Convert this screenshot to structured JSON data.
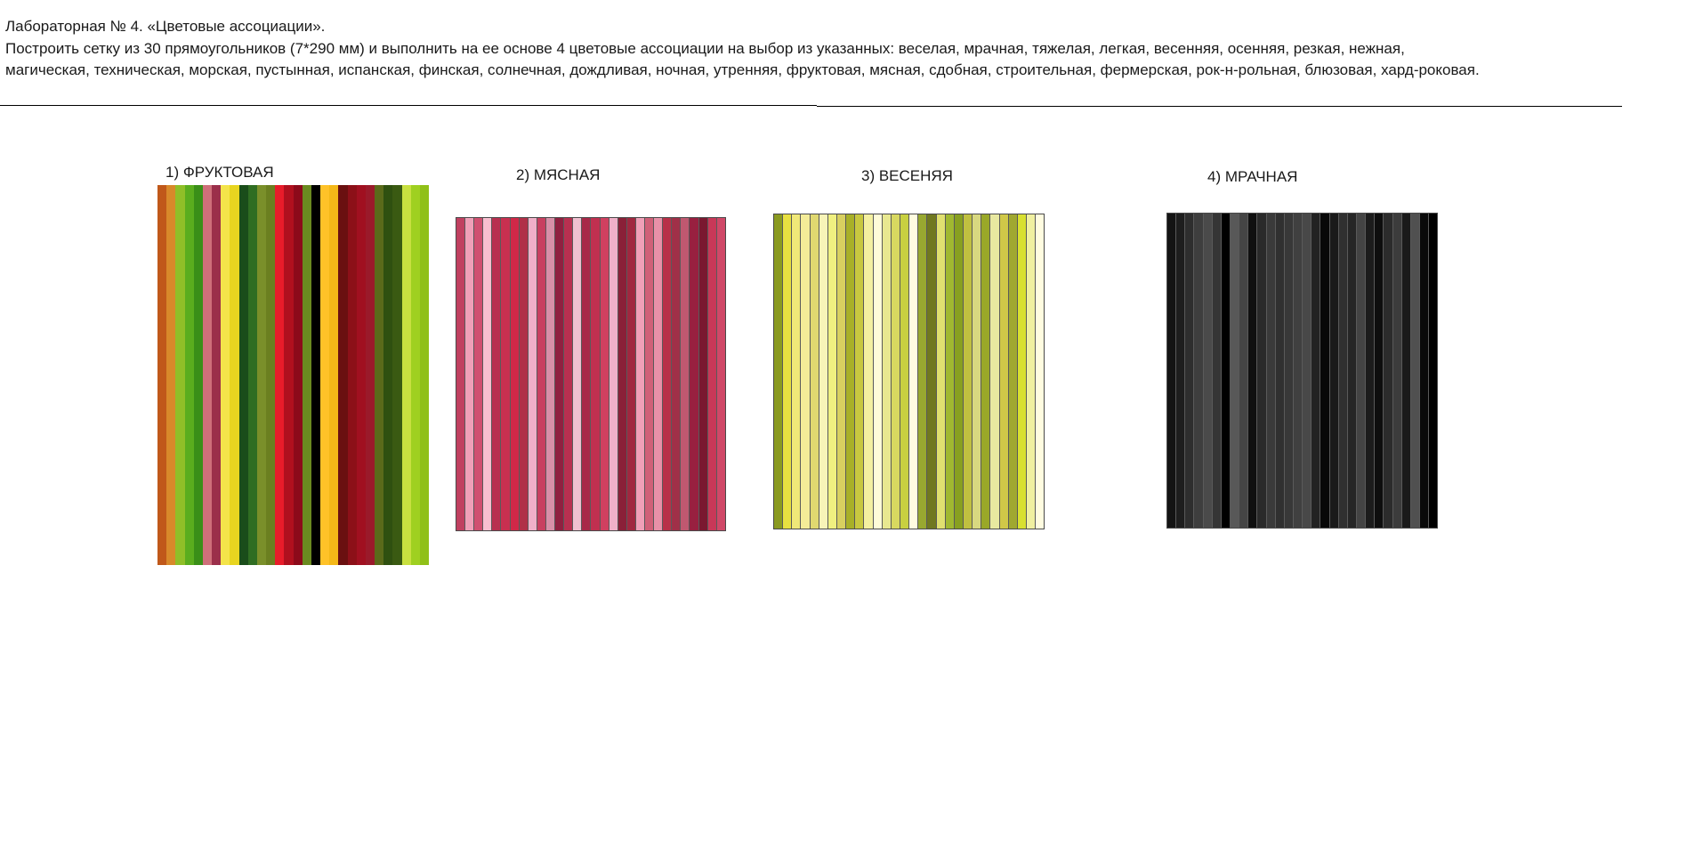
{
  "header": {
    "line1": "Лабораторная № 4. «Цветовые ассоциации».",
    "line2": "Построить сетку из 30 прямоугольников (7*290 мм) и выполнить на ее основе 4 цветовые ассоциации на выбор из указанных: веселая, мрачная, тяжелая, легкая, весенняя, осенняя, резкая, нежная,",
    "line3": "магическая, техническая, морская, пустынная, испанская, финская, солнечная, дождливая, ночная, утренняя, фруктовая, мясная, сдобная, строительная, фермерская, рок-н-рольная, блюзовая, хард-роковая."
  },
  "panels": [
    {
      "title": "1) ФРУКТОВАЯ",
      "colors": [
        "#c0581a",
        "#d8892a",
        "#8fbf28",
        "#5aad1e",
        "#3a8f18",
        "#cf6f7a",
        "#9b2f4a",
        "#f4e44a",
        "#e8d520",
        "#1a4d1a",
        "#2f6d22",
        "#7a8f2a",
        "#6b7f20",
        "#e81c2a",
        "#b0101e",
        "#8c0a1a",
        "#6a8a20",
        "#000000",
        "#ffc228",
        "#f4b818",
        "#6a1010",
        "#8c1018",
        "#a01020",
        "#9a1a2a",
        "#5a6a1a",
        "#2f5010",
        "#3a5a12",
        "#c8e040",
        "#9fd020",
        "#90c018"
      ]
    },
    {
      "title": "2) МЯСНАЯ",
      "colors": [
        "#c04060",
        "#f0a0b8",
        "#d05070",
        "#f8c0d0",
        "#b83050",
        "#c83050",
        "#d02848",
        "#b03048",
        "#f0b0c8",
        "#c84060",
        "#d890a8",
        "#902040",
        "#b83050",
        "#f0c0d0",
        "#a82848",
        "#c03050",
        "#d04060",
        "#f0b0c8",
        "#8a2038",
        "#a02840",
        "#f0a0b8",
        "#d06078",
        "#e890a8",
        "#b83048",
        "#a03048",
        "#c05870",
        "#982040",
        "#7a1830",
        "#c83858",
        "#d04868"
      ]
    },
    {
      "title": "3) ВЕСЕНЯЯ",
      "colors": [
        "#8a9a20",
        "#e8e040",
        "#f0e878",
        "#f4ec98",
        "#e0d870",
        "#f8f4b8",
        "#f0f080",
        "#d8d060",
        "#a8b028",
        "#c8c840",
        "#f4f0a0",
        "#fffcd8",
        "#e8e890",
        "#d8d860",
        "#c8d040",
        "#fffce0",
        "#98a830",
        "#707820",
        "#e0e070",
        "#a0b830",
        "#88a020",
        "#c0c040",
        "#d8d880",
        "#9aa828",
        "#e8e8a0",
        "#d0c848",
        "#a0a830",
        "#d8e030",
        "#f0f0a0",
        "#fffce0"
      ]
    },
    {
      "title": "4) МРАЧНАЯ",
      "colors": [
        "#141414",
        "#1e1e1e",
        "#2e2e2e",
        "#3e3e3e",
        "#4a4a4a",
        "#353535",
        "#000000",
        "#585858",
        "#454545",
        "#101010",
        "#2a2a2a",
        "#3a3a3a",
        "#303030",
        "#383838",
        "#404040",
        "#484848",
        "#222222",
        "#080808",
        "#1a1a1a",
        "#303030",
        "#262626",
        "#444444",
        "#1c1c1c",
        "#0e0e0e",
        "#2c2c2c",
        "#3c3c3c",
        "#1a1a1a",
        "#505050",
        "#0a0a0a",
        "#000000"
      ]
    }
  ]
}
